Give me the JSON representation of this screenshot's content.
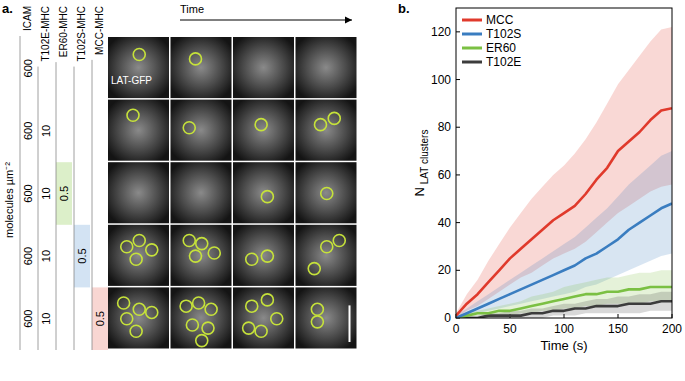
{
  "panel_labels": [
    "a.",
    "b."
  ],
  "panel_a": {
    "time_label": "Time",
    "image_label": "LAT-GFP",
    "unit_label": "molecules µm⁻²",
    "columns": [
      "ICAM",
      "T102E-MHC",
      "ER60-MHC",
      "T102S-MHC",
      "MCC-MHC"
    ],
    "rows": [
      [
        600
      ],
      [
        600,
        10
      ],
      [
        600,
        10,
        0.5
      ],
      [
        600,
        10,
        null,
        0.5
      ],
      [
        600,
        10,
        null,
        null,
        0.5
      ]
    ]
  },
  "chart_data": {
    "type": "line",
    "x_label": "Time (s)",
    "y_label": "N LAT clusters",
    "x": [
      0,
      10,
      20,
      30,
      40,
      50,
      60,
      70,
      80,
      90,
      100,
      110,
      120,
      130,
      140,
      150,
      160,
      170,
      180,
      190,
      200
    ],
    "xlim": [
      0,
      200
    ],
    "xticks": [
      0,
      50,
      100,
      150,
      200
    ],
    "ylim": [
      0,
      130
    ],
    "yticks": [
      0,
      20,
      40,
      60,
      80,
      100,
      120
    ],
    "legend": "upper left",
    "series": [
      {
        "name": "MCC",
        "color": "#e03a2c",
        "values": [
          1,
          6,
          10,
          15,
          20,
          25,
          29,
          33,
          37,
          41,
          44,
          47,
          52,
          58,
          63,
          70,
          74,
          78,
          83,
          87,
          88
        ],
        "upper": [
          2,
          10,
          16,
          24,
          31,
          38,
          44,
          50,
          55,
          60,
          64,
          69,
          75,
          82,
          90,
          98,
          104,
          110,
          116,
          121,
          122
        ],
        "lower": [
          0,
          3,
          5,
          8,
          11,
          14,
          17,
          19,
          22,
          25,
          27,
          29,
          32,
          36,
          40,
          44,
          47,
          50,
          53,
          55,
          56
        ]
      },
      {
        "name": "T102S",
        "color": "#3a7dc0",
        "values": [
          0,
          2,
          4,
          6,
          8,
          10,
          12,
          14,
          16,
          18,
          20,
          22,
          25,
          27,
          30,
          33,
          37,
          40,
          43,
          46,
          48
        ],
        "upper": [
          1,
          4,
          7,
          10,
          13,
          16,
          19,
          22,
          25,
          28,
          31,
          34,
          38,
          42,
          46,
          51,
          56,
          60,
          64,
          68,
          70
        ],
        "lower": [
          0,
          1,
          2,
          3,
          4,
          5,
          6,
          7,
          8,
          9,
          10,
          11,
          13,
          14,
          16,
          18,
          20,
          22,
          24,
          26,
          27
        ]
      },
      {
        "name": "ER60",
        "color": "#7bc043",
        "values": [
          0,
          1,
          2,
          2,
          3,
          3,
          4,
          5,
          6,
          7,
          8,
          9,
          10,
          10,
          11,
          11,
          12,
          12,
          13,
          13,
          13
        ],
        "upper": [
          1,
          2,
          3,
          4,
          5,
          6,
          7,
          9,
          10,
          11,
          13,
          14,
          15,
          16,
          17,
          17,
          18,
          19,
          19,
          20,
          20
        ],
        "lower": [
          0,
          0,
          1,
          1,
          1,
          1,
          2,
          2,
          3,
          3,
          4,
          4,
          5,
          5,
          6,
          6,
          6,
          6,
          7,
          7,
          7
        ]
      },
      {
        "name": "T102E",
        "color": "#3c3c3c",
        "values": [
          0,
          0,
          0,
          1,
          1,
          1,
          1,
          2,
          2,
          3,
          3,
          4,
          4,
          5,
          5,
          5,
          6,
          6,
          6,
          7,
          7
        ],
        "upper": [
          0,
          1,
          1,
          2,
          2,
          3,
          3,
          4,
          4,
          5,
          6,
          6,
          7,
          8,
          8,
          9,
          9,
          10,
          10,
          11,
          11
        ],
        "lower": [
          0,
          0,
          0,
          0,
          0,
          0,
          0,
          0,
          0,
          1,
          1,
          1,
          2,
          2,
          2,
          2,
          2,
          2,
          3,
          3,
          3
        ]
      }
    ]
  }
}
